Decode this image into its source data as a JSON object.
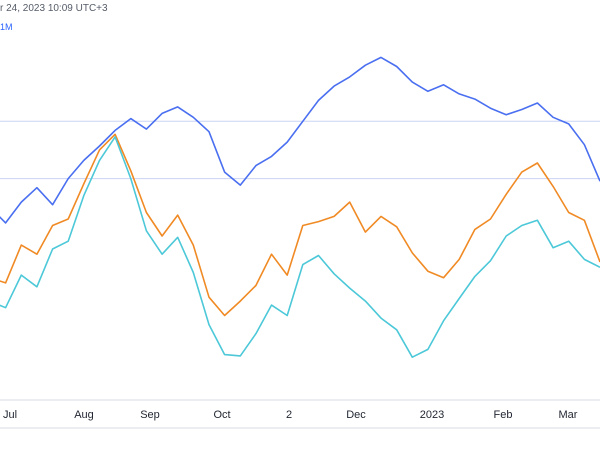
{
  "header": {
    "timestamp": "r 24, 2023 10:09 UTC+3",
    "series_tag": "1M"
  },
  "colors": {
    "blue": "#4a6ff0",
    "orange": "#f08a24",
    "cyan": "#4cc8d8",
    "grid": "#c9d3f5",
    "axis_line": "#d7dbe3",
    "tick_text": "#1f2430"
  },
  "chart_data": {
    "type": "line",
    "x_ticks": [
      "Jul",
      "Aug",
      "Sep",
      "Oct",
      "2",
      "Dec",
      "2023",
      "Feb",
      "Mar"
    ],
    "x": [
      "Jun 24",
      "Jul 1",
      "Jul 8",
      "Jul 15",
      "Jul 22",
      "Jul 29",
      "Aug 5",
      "Aug 12",
      "Aug 19",
      "Aug 26",
      "Sep 2",
      "Sep 9",
      "Sep 16",
      "Sep 23",
      "Sep 30",
      "Oct 7",
      "Oct 14",
      "Oct 21",
      "Oct 28",
      "Nov 4",
      "Nov 11",
      "Nov 18",
      "Nov 25",
      "Dec 2",
      "Dec 9",
      "Dec 16",
      "Dec 23",
      "Dec 30",
      "Jan 6",
      "Jan 13",
      "Jan 20",
      "Jan 27",
      "Feb 3",
      "Feb 10",
      "Feb 17",
      "Feb 24",
      "Mar 3",
      "Mar 10",
      "Mar 17",
      "Mar 24"
    ],
    "series": [
      {
        "color": "#4a6ff0",
        "values": [
          -0.6,
          -1.8,
          -0.2,
          0.9,
          -0.4,
          1.6,
          3.0,
          4.1,
          5.3,
          6.2,
          5.4,
          6.6,
          7.1,
          6.3,
          5.2,
          2.1,
          1.1,
          2.6,
          3.3,
          4.4,
          6.0,
          7.6,
          8.7,
          9.4,
          10.3,
          10.9,
          10.2,
          9.0,
          8.3,
          8.8,
          8.1,
          7.7,
          7.0,
          6.5,
          6.9,
          7.4,
          6.3,
          5.8,
          4.2,
          1.4
        ]
      },
      {
        "color": "#f08a24",
        "values": [
          -6.0,
          -6.4,
          -3.5,
          -4.2,
          -2.0,
          -1.5,
          1.2,
          3.8,
          5.0,
          2.2,
          -1.0,
          -2.8,
          -1.2,
          -3.5,
          -7.5,
          -8.9,
          -7.8,
          -6.6,
          -4.2,
          -5.8,
          -2.0,
          -1.7,
          -1.3,
          -0.2,
          -2.5,
          -1.3,
          -2.1,
          -4.1,
          -5.5,
          -6.0,
          -4.6,
          -2.3,
          -1.5,
          0.4,
          2.1,
          2.8,
          1.0,
          -1.0,
          -1.6,
          -4.8
        ]
      },
      {
        "color": "#4cc8d8",
        "values": [
          -7.8,
          -8.3,
          -5.8,
          -6.7,
          -3.8,
          -3.2,
          0.3,
          3.0,
          4.8,
          1.6,
          -2.4,
          -4.2,
          -2.9,
          -5.6,
          -9.6,
          -11.9,
          -12.0,
          -10.3,
          -8.1,
          -8.9,
          -5.0,
          -4.3,
          -5.7,
          -6.8,
          -7.8,
          -9.1,
          -10.0,
          -12.1,
          -11.5,
          -9.3,
          -7.6,
          -5.9,
          -4.7,
          -2.8,
          -2.0,
          -1.6,
          -3.7,
          -3.2,
          -4.6,
          -5.2
        ]
      }
    ],
    "grid": true,
    "legend": "none"
  }
}
